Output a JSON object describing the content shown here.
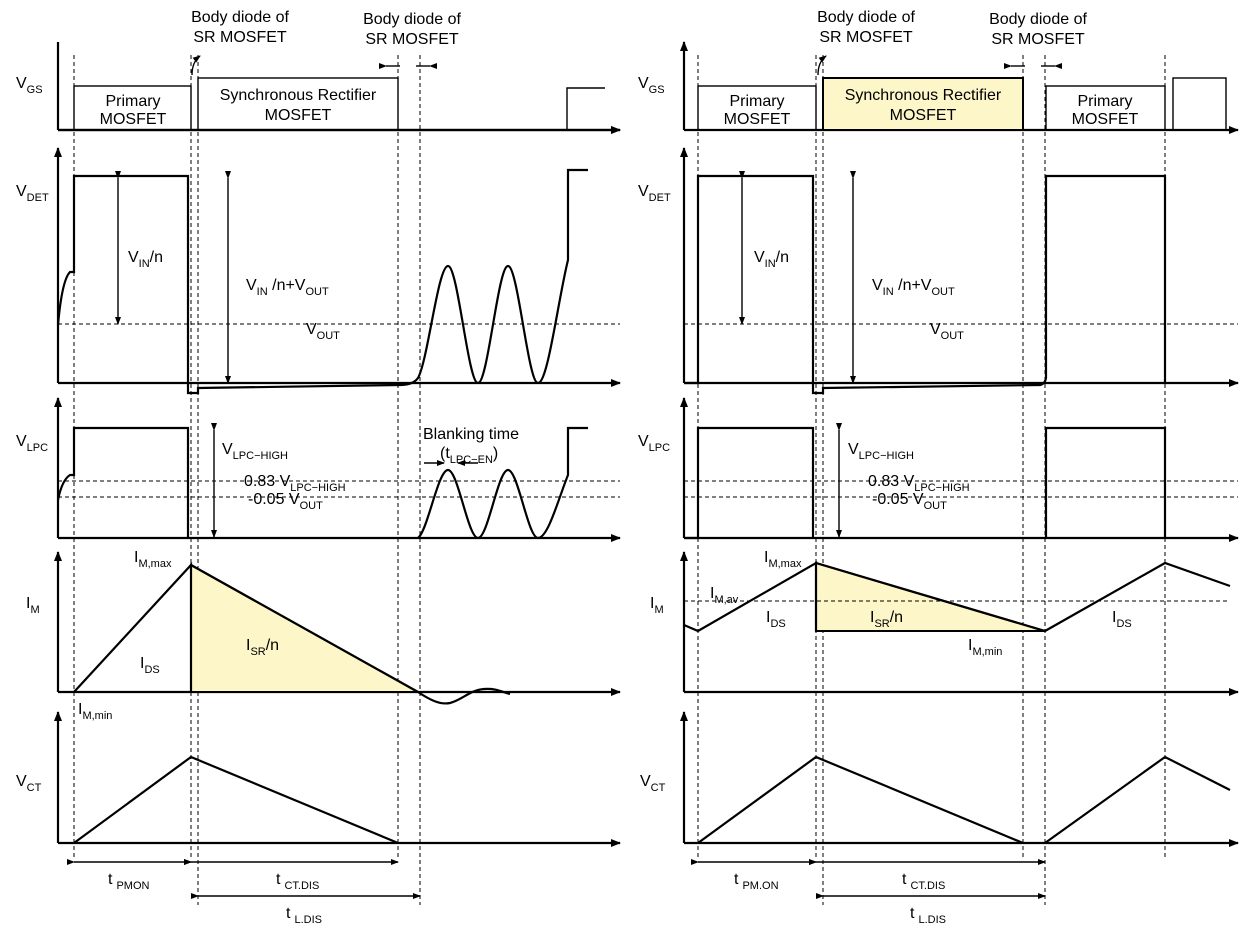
{
  "labels": {
    "vgs": "V",
    "vgs_sub": "GS",
    "vdet": "V",
    "vdet_sub": "DET",
    "vlpc": "V",
    "vlpc_sub": "LPC",
    "im": "I",
    "im_sub": "M",
    "vct": "V",
    "vct_sub": "CT",
    "body_diode_l1": "Body diode of",
    "body_diode_l2": "SR MOSFET",
    "primary_l1": "Primary",
    "primary_l2": "MOSFET",
    "sync_l1": "Synchronous Rectifier",
    "sync_l2": "MOSFET",
    "vin_n": "V",
    "vin_n_sub": "IN",
    "vin_n_tail": "/n",
    "vin_plus": "V",
    "vin_plus_sub": "IN",
    "vin_plus_mid": " /n+V",
    "vin_plus_sub2": "OUT",
    "vout": "V",
    "vout_sub": "OUT",
    "vlpc_high": "V",
    "vlpc_high_sub": "LPC−HIGH",
    "thr083": "0.83 V",
    "thr083_sub": "LPC−HIGH",
    "thr005": "-0.05 V",
    "thr005_sub": "OUT",
    "blank_l1": "Blanking time",
    "blank_l2_a": "(t",
    "blank_l2_sub": "LPC−EN",
    "blank_l2_b": ")",
    "immax": "I",
    "immax_sub": "M,max",
    "immin": "I",
    "immin_sub": "M,min",
    "imav": "I",
    "imav_sub": "M,av",
    "ids": "I",
    "ids_sub": "DS",
    "isr": "I",
    "isr_sub": "SR",
    "isr_tail": "/n",
    "t": "t",
    "tpmon_left": "PMON",
    "tpmon_right": "PM.ON",
    "tctdis": "CT.DIS",
    "tldis": "L.DIS"
  },
  "colors": {
    "highlight": "#fdf6c9",
    "ink": "#000000"
  }
}
